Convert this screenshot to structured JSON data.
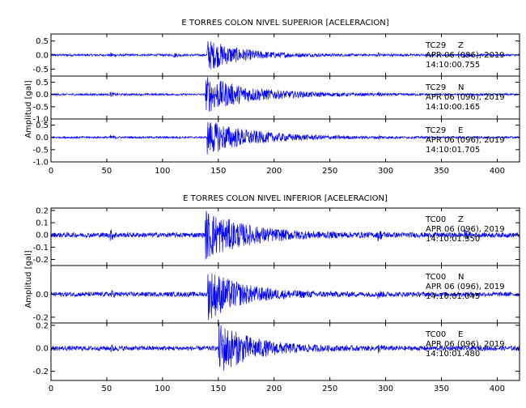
{
  "chart_data": [
    {
      "type": "line",
      "title": "E TORRES COLON NIVEL SUPERIOR [ACELERACION]",
      "ylabel": "Amplitud [gal]",
      "xlabel": "",
      "xlim": [
        0,
        420
      ],
      "x_ticks": [
        "0",
        "50",
        "100",
        "150",
        "200",
        "250",
        "300",
        "350",
        "400"
      ],
      "trace_color": "#0000ff",
      "grid": false,
      "panels": [
        {
          "station": "TC29",
          "component": "Z",
          "date": "APR 06 (096), 2019",
          "time": "14:10:00.755",
          "ylim": [
            -0.75,
            0.75
          ],
          "y_ticks": [
            "0.5",
            "0.0",
            "-0.5"
          ],
          "noise_amplitude": 0.04,
          "events": [
            {
              "t": 140,
              "amp": 0.55,
              "decay": 30
            },
            {
              "t": 53,
              "amp": 0.08,
              "decay": 3
            },
            {
              "t": 110,
              "amp": 0.08,
              "decay": 3
            },
            {
              "t": 293,
              "amp": 0.07,
              "decay": 3
            },
            {
              "t": 370,
              "amp": 0.06,
              "decay": 3
            }
          ]
        },
        {
          "station": "TC29",
          "component": "N",
          "date": "APR 06 (096), 2019",
          "time": "14:10:00.165",
          "ylim": [
            -1.0,
            0.75
          ],
          "y_ticks": [
            "0.5",
            "0.0",
            "-0.5",
            "-1.0"
          ],
          "noise_amplitude": 0.04,
          "events": [
            {
              "t": 138,
              "amp": 0.75,
              "decay": 40
            },
            {
              "t": 53,
              "amp": 0.08,
              "decay": 3
            },
            {
              "t": 293,
              "amp": 0.07,
              "decay": 3
            }
          ]
        },
        {
          "station": "TC29",
          "component": "E",
          "date": "APR 06 (096), 2019",
          "time": "14:10:01.705",
          "ylim": [
            -1.0,
            0.75
          ],
          "y_ticks": [
            "0.5",
            "0.0",
            "-0.5",
            "-1.0"
          ],
          "noise_amplitude": 0.04,
          "events": [
            {
              "t": 140,
              "amp": 0.7,
              "decay": 40
            },
            {
              "t": 53,
              "amp": 0.08,
              "decay": 3
            },
            {
              "t": 293,
              "amp": 0.07,
              "decay": 3
            }
          ]
        }
      ]
    },
    {
      "type": "line",
      "title": "E TORRES COLON NIVEL INFERIOR [ACELERACION]",
      "ylabel": "Amplitud [gal]",
      "xlabel": "",
      "xlim": [
        0,
        420
      ],
      "x_ticks": [
        "0",
        "50",
        "100",
        "150",
        "200",
        "250",
        "300",
        "350",
        "400"
      ],
      "trace_color": "#0000ff",
      "grid": false,
      "panels": [
        {
          "station": "TC00",
          "component": "Z",
          "date": "APR 06 (096), 2019",
          "time": "14:10:01.350",
          "ylim": [
            -0.25,
            0.22
          ],
          "y_ticks": [
            "0.2",
            "0.1",
            "0.0",
            "-0.1",
            "-0.2"
          ],
          "noise_amplitude": 0.02,
          "events": [
            {
              "t": 138,
              "amp": 0.2,
              "decay": 35
            },
            {
              "t": 53,
              "amp": 0.04,
              "decay": 3
            },
            {
              "t": 293,
              "amp": 0.04,
              "decay": 3
            },
            {
              "t": 370,
              "amp": 0.04,
              "decay": 3
            }
          ]
        },
        {
          "station": "TC00",
          "component": "N",
          "date": "APR 06 (096), 2019",
          "time": "14:10:01.045",
          "ylim": [
            -0.25,
            0.25
          ],
          "y_ticks": [
            "0.0",
            "-0.2"
          ],
          "noise_amplitude": 0.02,
          "events": [
            {
              "t": 140,
              "amp": 0.22,
              "decay": 30
            },
            {
              "t": 53,
              "amp": 0.03,
              "decay": 3
            },
            {
              "t": 293,
              "amp": 0.03,
              "decay": 3
            }
          ]
        },
        {
          "station": "TC00",
          "component": "E",
          "date": "APR 06 (096), 2019",
          "time": "14:10:01.480",
          "ylim": [
            -0.28,
            0.22
          ],
          "y_ticks": [
            "0.2",
            "0.0",
            "-0.2"
          ],
          "noise_amplitude": 0.02,
          "events": [
            {
              "t": 150,
              "amp": 0.22,
              "decay": 30
            },
            {
              "t": 53,
              "amp": 0.03,
              "decay": 3
            },
            {
              "t": 293,
              "amp": 0.03,
              "decay": 3
            }
          ]
        }
      ]
    }
  ]
}
